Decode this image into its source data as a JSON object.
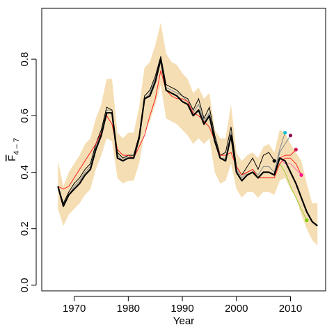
{
  "chart_data": {
    "type": "line",
    "xlabel": "Year",
    "ylabel_main": "F",
    "ylabel_sub": "4 – 7",
    "xlim": [
      1964,
      2016.5
    ],
    "ylim": [
      -0.02,
      0.98
    ],
    "x_ticks": [
      1970,
      1980,
      1990,
      2000,
      2010
    ],
    "x_tick_labels": [
      "1970",
      "1980",
      "1990",
      "2000",
      "2010"
    ],
    "y_ticks": [
      0.0,
      0.2,
      0.4,
      0.6,
      0.8
    ],
    "y_tick_labels": [
      "0.0",
      "0.2",
      "0.4",
      "0.6",
      "0.8"
    ],
    "grid": false,
    "colors": {
      "band": "#f5deb3",
      "main": "#000000",
      "retro_lines": "#7f8a92",
      "red_line": "#ff2020"
    },
    "confidence_band": {
      "x": [
        1967,
        1968,
        1969,
        1970,
        1971,
        1972,
        1973,
        1974,
        1975,
        1976,
        1977,
        1978,
        1979,
        1980,
        1981,
        1982,
        1983,
        1984,
        1985,
        1986,
        1987,
        1988,
        1989,
        1990,
        1991,
        1992,
        1993,
        1994,
        1995,
        1996,
        1997,
        1998,
        1999,
        2000,
        2001,
        2002,
        2003,
        2004,
        2005,
        2006,
        2007,
        2008,
        2009,
        2010,
        2011,
        2012,
        2013,
        2014,
        2015
      ],
      "upper": [
        0.44,
        0.35,
        0.4,
        0.43,
        0.46,
        0.5,
        0.52,
        0.59,
        0.64,
        0.73,
        0.73,
        0.54,
        0.52,
        0.54,
        0.54,
        0.63,
        0.77,
        0.79,
        0.85,
        0.93,
        0.82,
        0.79,
        0.78,
        0.75,
        0.73,
        0.68,
        0.7,
        0.66,
        0.68,
        0.55,
        0.52,
        0.52,
        0.64,
        0.47,
        0.44,
        0.46,
        0.47,
        0.45,
        0.49,
        0.5,
        0.47,
        0.55,
        0.54,
        0.5,
        0.47,
        0.44,
        0.36,
        0.29,
        0.29
      ],
      "lower": [
        0.27,
        0.21,
        0.25,
        0.27,
        0.29,
        0.32,
        0.34,
        0.41,
        0.46,
        0.52,
        0.51,
        0.38,
        0.36,
        0.37,
        0.37,
        0.43,
        0.54,
        0.58,
        0.64,
        0.71,
        0.59,
        0.58,
        0.57,
        0.55,
        0.53,
        0.5,
        0.52,
        0.5,
        0.52,
        0.4,
        0.36,
        0.37,
        0.43,
        0.34,
        0.31,
        0.33,
        0.33,
        0.31,
        0.33,
        0.33,
        0.32,
        0.37,
        0.38,
        0.34,
        0.31,
        0.25,
        0.2,
        0.16,
        0.14
      ]
    },
    "retrospective_series": [
      {
        "x": [
          1967,
          1968,
          1969,
          1970,
          1971,
          1972,
          1973,
          1974,
          1975,
          1976,
          1977,
          1978,
          1979,
          1980,
          1981,
          1982,
          1983,
          1984,
          1985,
          1986,
          1987,
          1988,
          1989,
          1990,
          1991,
          1992,
          1993,
          1994,
          1995,
          1996,
          1997,
          1998,
          1999,
          2000,
          2001,
          2002,
          2003,
          2004,
          2005,
          2006,
          2007,
          2008,
          2009
        ],
        "y": [
          0.35,
          0.28,
          0.32,
          0.35,
          0.37,
          0.4,
          0.42,
          0.49,
          0.54,
          0.62,
          0.62,
          0.46,
          0.44,
          0.46,
          0.45,
          0.52,
          0.66,
          0.68,
          0.73,
          0.8,
          0.7,
          0.69,
          0.68,
          0.67,
          0.65,
          0.61,
          0.64,
          0.58,
          0.61,
          0.52,
          0.45,
          0.45,
          0.54,
          0.41,
          0.38,
          0.4,
          0.41,
          0.39,
          0.42,
          0.42,
          0.4,
          0.48,
          0.54
        ],
        "color": "#7f8a92",
        "end_color": "#17becf"
      },
      {
        "x": [
          1967,
          1968,
          1969,
          1970,
          1971,
          1972,
          1973,
          1974,
          1975,
          1976,
          1977,
          1978,
          1979,
          1980,
          1981,
          1982,
          1983,
          1984,
          1985,
          1986,
          1987,
          1988,
          1989,
          1990,
          1991,
          1992,
          1993,
          1994,
          1995,
          1996,
          1997,
          1998,
          1999,
          2000,
          2001,
          2002,
          2003,
          2004,
          2005,
          2006,
          2007,
          2008,
          2009,
          2010
        ],
        "y": [
          0.35,
          0.28,
          0.32,
          0.34,
          0.36,
          0.39,
          0.41,
          0.48,
          0.53,
          0.61,
          0.61,
          0.45,
          0.44,
          0.45,
          0.45,
          0.52,
          0.66,
          0.67,
          0.72,
          0.8,
          0.69,
          0.68,
          0.67,
          0.65,
          0.64,
          0.6,
          0.62,
          0.57,
          0.6,
          0.51,
          0.45,
          0.44,
          0.53,
          0.4,
          0.37,
          0.39,
          0.4,
          0.38,
          0.4,
          0.4,
          0.39,
          0.47,
          0.5,
          0.53
        ],
        "color": "#7f8a92",
        "end_color": "#8b0a50"
      },
      {
        "x": [
          1967,
          1968,
          1969,
          1970,
          1971,
          1972,
          1973,
          1974,
          1975,
          1976,
          1977,
          1978,
          1979,
          1980,
          1981,
          1982,
          1983,
          1984,
          1985,
          1986,
          1987,
          1988,
          1989,
          1990,
          1991,
          1992,
          1993,
          1994,
          1995,
          1996,
          1997,
          1998,
          1999,
          2000,
          2001,
          2002,
          2003,
          2004,
          2005,
          2006,
          2007,
          2008,
          2009,
          2010,
          2011
        ],
        "y": [
          0.35,
          0.28,
          0.32,
          0.34,
          0.36,
          0.39,
          0.41,
          0.48,
          0.53,
          0.61,
          0.61,
          0.45,
          0.44,
          0.45,
          0.45,
          0.52,
          0.66,
          0.67,
          0.72,
          0.8,
          0.69,
          0.68,
          0.67,
          0.65,
          0.64,
          0.6,
          0.62,
          0.57,
          0.6,
          0.51,
          0.45,
          0.44,
          0.53,
          0.4,
          0.37,
          0.39,
          0.4,
          0.38,
          0.4,
          0.4,
          0.39,
          0.45,
          0.46,
          0.46,
          0.48
        ],
        "color": "#ff2020",
        "end_color": "#d0104a"
      },
      {
        "x": [
          1967,
          1968,
          1969,
          1970,
          1971,
          1972,
          1973,
          1974,
          1975,
          1976,
          1977,
          1978,
          1979,
          1980,
          1981,
          1982,
          1983,
          1984,
          1985,
          1986,
          1987,
          1988,
          1989,
          1990,
          1991,
          1992,
          1993,
          1994,
          1995,
          1996,
          1997,
          1998,
          1999,
          2000,
          2001,
          2002,
          2003,
          2004,
          2005,
          2006,
          2007,
          2008,
          2009,
          2010,
          2011,
          2012
        ],
        "y": [
          0.35,
          0.28,
          0.32,
          0.34,
          0.36,
          0.39,
          0.41,
          0.48,
          0.53,
          0.61,
          0.61,
          0.45,
          0.44,
          0.45,
          0.45,
          0.52,
          0.66,
          0.67,
          0.72,
          0.8,
          0.69,
          0.68,
          0.67,
          0.65,
          0.64,
          0.6,
          0.62,
          0.57,
          0.6,
          0.51,
          0.45,
          0.44,
          0.53,
          0.4,
          0.37,
          0.39,
          0.4,
          0.38,
          0.4,
          0.4,
          0.39,
          0.45,
          0.43,
          0.43,
          0.41,
          0.39
        ],
        "color": "#ff69b4",
        "end_color": "#ff1493"
      },
      {
        "x": [
          1967,
          1968,
          1969,
          1970,
          1971,
          1972,
          1973,
          1974,
          1975,
          1976,
          1977,
          1978,
          1979,
          1980,
          1981,
          1982,
          1983,
          1984,
          1985,
          1986,
          1987,
          1988,
          1989,
          1990,
          1991,
          1992,
          1993,
          1994,
          1995,
          1996,
          1997,
          1998,
          1999,
          2000,
          2001,
          2002,
          2003,
          2004,
          2005,
          2006,
          2007,
          2008,
          2009,
          2010,
          2011,
          2012,
          2013
        ],
        "y": [
          0.35,
          0.28,
          0.32,
          0.34,
          0.36,
          0.39,
          0.41,
          0.48,
          0.53,
          0.61,
          0.61,
          0.45,
          0.44,
          0.45,
          0.45,
          0.52,
          0.66,
          0.67,
          0.72,
          0.8,
          0.69,
          0.68,
          0.67,
          0.65,
          0.64,
          0.6,
          0.62,
          0.57,
          0.6,
          0.51,
          0.45,
          0.44,
          0.53,
          0.4,
          0.37,
          0.39,
          0.4,
          0.38,
          0.4,
          0.4,
          0.39,
          0.43,
          0.4,
          0.35,
          0.31,
          0.27,
          0.23
        ],
        "color": "#9acd32",
        "end_color": "#7ccd00"
      },
      {
        "x": [
          1967,
          1968,
          1969,
          1970,
          1971,
          1972,
          1973,
          1974,
          1975,
          1976,
          1977,
          1978,
          1979,
          1980,
          1981,
          1982,
          1983,
          1984,
          1985,
          1986,
          1987,
          1988,
          1989,
          1990,
          1991,
          1992,
          1993,
          1994,
          1995,
          1996,
          1997,
          1998,
          1999,
          2000,
          2001,
          2002,
          2003,
          2004,
          2005,
          2006,
          2007
        ],
        "y": [
          0.35,
          0.29,
          0.33,
          0.36,
          0.38,
          0.41,
          0.43,
          0.5,
          0.55,
          0.63,
          0.62,
          0.47,
          0.45,
          0.46,
          0.46,
          0.53,
          0.67,
          0.69,
          0.74,
          0.81,
          0.71,
          0.7,
          0.69,
          0.67,
          0.66,
          0.62,
          0.66,
          0.59,
          0.63,
          0.53,
          0.46,
          0.47,
          0.56,
          0.42,
          0.39,
          0.42,
          0.45,
          0.41,
          0.46,
          0.47,
          0.44
        ],
        "color": "#000000",
        "end_color": "#000000"
      }
    ],
    "red_series": {
      "x": [
        1967,
        1968,
        1969,
        1970,
        1971,
        1972,
        1973,
        1974,
        1975,
        1976,
        1977,
        1978,
        1979,
        1980,
        1981,
        1982,
        1983,
        1984,
        1985,
        1986,
        1987,
        1988,
        1989,
        1990,
        1991,
        1992,
        1993,
        1994,
        1995,
        1996,
        1997,
        1998,
        1999,
        2000,
        2001,
        2002,
        2003,
        2004,
        2005,
        2006,
        2007,
        2008,
        2009,
        2010,
        2011,
        2012
      ],
      "y": [
        0.35,
        0.34,
        0.35,
        0.38,
        0.41,
        0.44,
        0.47,
        0.5,
        0.54,
        0.6,
        0.57,
        0.48,
        0.46,
        0.46,
        0.45,
        0.49,
        0.53,
        0.6,
        0.66,
        0.76,
        0.69,
        0.67,
        0.66,
        0.66,
        0.65,
        0.61,
        0.6,
        0.58,
        0.56,
        0.51,
        0.46,
        0.46,
        0.47,
        0.42,
        0.39,
        0.4,
        0.41,
        0.38,
        0.38,
        0.38,
        0.38,
        0.43,
        0.45,
        0.45,
        0.43,
        0.39
      ]
    },
    "main_series": {
      "x": [
        1967,
        1968,
        1969,
        1970,
        1971,
        1972,
        1973,
        1974,
        1975,
        1976,
        1977,
        1978,
        1979,
        1980,
        1981,
        1982,
        1983,
        1984,
        1985,
        1986,
        1987,
        1988,
        1989,
        1990,
        1991,
        1992,
        1993,
        1994,
        1995,
        1996,
        1997,
        1998,
        1999,
        2000,
        2001,
        2002,
        2003,
        2004,
        2005,
        2006,
        2007,
        2008,
        2009,
        2010,
        2011,
        2012,
        2013,
        2014,
        2015
      ],
      "y": [
        0.35,
        0.28,
        0.32,
        0.34,
        0.36,
        0.39,
        0.41,
        0.48,
        0.53,
        0.61,
        0.61,
        0.45,
        0.44,
        0.45,
        0.45,
        0.52,
        0.66,
        0.67,
        0.72,
        0.8,
        0.69,
        0.68,
        0.67,
        0.65,
        0.64,
        0.6,
        0.62,
        0.57,
        0.6,
        0.51,
        0.45,
        0.44,
        0.53,
        0.4,
        0.37,
        0.39,
        0.4,
        0.38,
        0.4,
        0.4,
        0.39,
        0.45,
        0.44,
        0.4,
        0.36,
        0.31,
        0.26,
        0.225,
        0.21
      ]
    }
  }
}
